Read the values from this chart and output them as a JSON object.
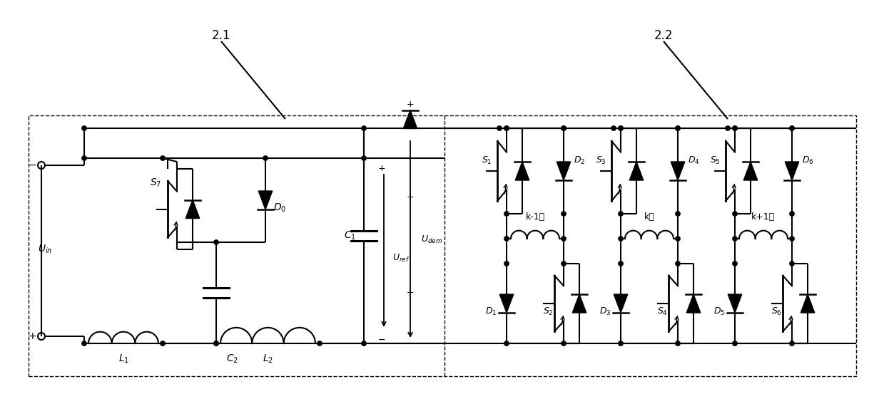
{
  "fig_w": 12.39,
  "fig_h": 5.53,
  "label_21": "2.1",
  "label_22": "2.2",
  "label_Uin": "$U_{in}$",
  "label_S7": "$S_7$",
  "label_D0": "$D_0$",
  "label_C1": "$C_1$",
  "label_C2": "$C_2$",
  "label_L1": "$L_1$",
  "label_L2": "$L_2$",
  "label_Uref": "$U_{ref}$",
  "label_Udem": "$U_{dem}$",
  "label_S1": "$S_1$",
  "label_S2": "$S_2$",
  "label_S3": "$S_3$",
  "label_S4": "$S_4$",
  "label_S5": "$S_5$",
  "label_S6": "$S_6$",
  "label_D1": "$D_1$",
  "label_D2": "$D_2$",
  "label_D3": "$D_3$",
  "label_D4": "$D_4$",
  "label_D5": "$D_5$",
  "label_D6": "$D_6$",
  "label_k1": "k-1相",
  "label_k": "k相",
  "label_k2": "k+1相"
}
